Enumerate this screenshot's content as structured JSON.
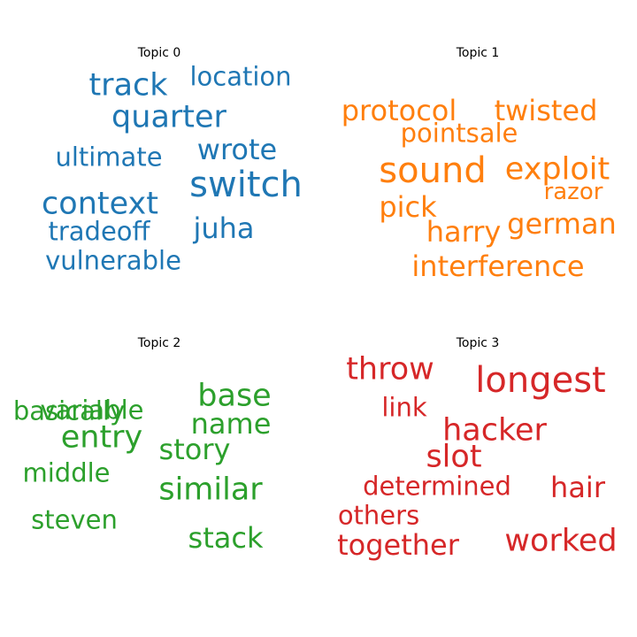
{
  "chart_data": {
    "type": "wordcloud",
    "topics": [
      {
        "title": "Topic 0",
        "color": "#1f77b4",
        "words": [
          "track",
          "location",
          "quarter",
          "wrote",
          "ultimate",
          "switch",
          "context",
          "juha",
          "tradeoff",
          "vulnerable"
        ]
      },
      {
        "title": "Topic 1",
        "color": "#ff7f0e",
        "words": [
          "protocol",
          "twisted",
          "pointsale",
          "sound",
          "exploit",
          "razor",
          "pick",
          "german",
          "harry",
          "interference"
        ]
      },
      {
        "title": "Topic 2",
        "color": "#2ca02c",
        "words": [
          "variable",
          "base",
          "basically",
          "name",
          "entry",
          "story",
          "middle",
          "similar",
          "steven",
          "stack"
        ]
      },
      {
        "title": "Topic 3",
        "color": "#d62728",
        "words": [
          "throw",
          "longest",
          "link",
          "hacker",
          "slot",
          "determined",
          "hair",
          "others",
          "together",
          "worked"
        ]
      }
    ]
  }
}
